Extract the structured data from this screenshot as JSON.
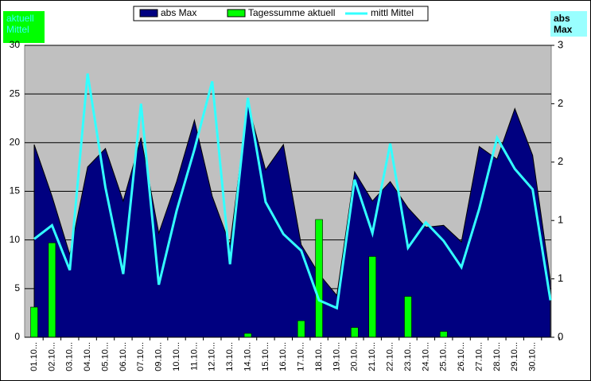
{
  "chart_data": {
    "type": "combo",
    "left_box_lines": [
      "aktuell",
      "Mittel"
    ],
    "right_box_lines": [
      "abs",
      "Max"
    ],
    "categories": [
      "01.10...",
      "02.10...",
      "03.10...",
      "04.10...",
      "05.10...",
      "06.10...",
      "07.10...",
      "09.10...",
      "10.10...",
      "11.10...",
      "12.10...",
      "13.10...",
      "14.10...",
      "15.10...",
      "16.10...",
      "17.10...",
      "18.10...",
      "19.10...",
      "20.10...",
      "21.10...",
      "22.10...",
      "23.10...",
      "24.10...",
      "25.10...",
      "26.10...",
      "27.10...",
      "28.10...",
      "29.10...",
      "30.10...",
      null
    ],
    "series": [
      {
        "name": "abs Max",
        "kind": "area",
        "color": "#000080",
        "values": [
          19.8,
          14.5,
          8.5,
          17.5,
          19.4,
          14,
          20.5,
          10.7,
          16,
          22.3,
          14.5,
          9.5,
          24,
          17.2,
          19.8,
          9.5,
          6.5,
          4.3,
          17,
          14,
          16,
          13.3,
          11.3,
          11.5,
          9.8,
          19.6,
          18.3,
          23.5,
          18.7,
          5.8
        ]
      },
      {
        "name": "Tagessumme aktuell",
        "kind": "bar",
        "color": "#00ff00",
        "values": [
          3.1,
          9.7,
          0,
          0,
          0,
          0,
          0,
          0,
          0,
          0,
          0,
          0,
          0.4,
          0,
          0,
          1.7,
          12.1,
          0,
          1,
          8.3,
          0,
          4.2,
          0,
          0.6,
          0,
          0,
          0,
          0,
          0,
          0
        ]
      },
      {
        "name": "mittl Mittel",
        "kind": "line",
        "color": "#33ffff",
        "values": [
          10.1,
          11.5,
          6.9,
          27.1,
          15.4,
          6.5,
          24,
          5.4,
          13,
          19.3,
          26.3,
          7.5,
          24.6,
          13.9,
          10.6,
          8.9,
          3.8,
          3,
          16.2,
          10.7,
          19.9,
          9.2,
          11.8,
          9.9,
          7.2,
          13.2,
          20.5,
          17.3,
          15.2,
          3.8
        ]
      }
    ],
    "ylim": [
      0,
      30
    ],
    "yticks": [
      0,
      5,
      10,
      15,
      20,
      25,
      30
    ],
    "y2lim": [
      0,
      3
    ],
    "y2ticks": [
      0,
      {
        "value": 0.6,
        "label": "1"
      },
      {
        "value": 1.2,
        "label": "1"
      },
      {
        "value": 1.8,
        "label": "2"
      },
      {
        "value": 2.4,
        "label": "2"
      },
      3
    ],
    "grid": true,
    "plot_background": "#c0c0c0"
  }
}
